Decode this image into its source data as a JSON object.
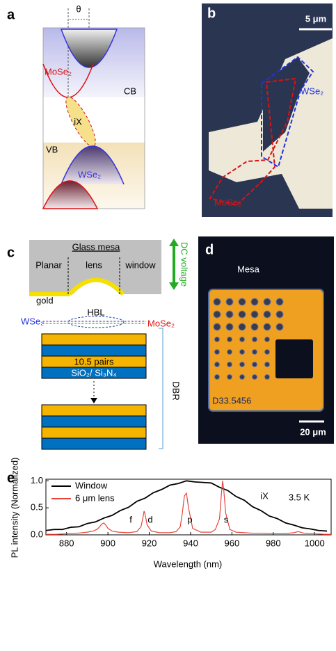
{
  "panels": {
    "a": {
      "label": "a",
      "theta": "θ",
      "mose2": "MoSe₂",
      "cb": "CB",
      "ix": "iX",
      "vb": "VB",
      "wse2": "WSe₂"
    },
    "b": {
      "label": "b",
      "scale_bar": "5 μm",
      "wse2": "WSe₂",
      "mose2": "MoSe₂"
    },
    "c": {
      "label": "c",
      "glass_mesa": "Glass mesa",
      "planar": "Planar",
      "lens": "lens",
      "window": "window",
      "gold": "gold",
      "dc_voltage": "DC voltage",
      "hbl": "HBL",
      "wse2": "WSe₂",
      "mose2": "MoSe₂",
      "pairs": "10.5 pairs",
      "materials": "SiO₂/ Si₃N₄",
      "dbr": "DBR"
    },
    "d": {
      "label": "d",
      "title": "Mesa",
      "sample_id": "D33.5456",
      "scale_bar": "20 μm"
    }
  },
  "chart_data": {
    "type": "line",
    "panel_label": "e",
    "x_label": "Wavelength (nm)",
    "y_label": "PL intensity (Normalized)",
    "annotations": [
      "iX",
      "3.5 K",
      "f",
      "d",
      "p",
      "s"
    ],
    "xlim": [
      870,
      1008
    ],
    "ylim": [
      0,
      1.03
    ],
    "xticks": [
      880,
      900,
      920,
      940,
      960,
      980,
      1000
    ],
    "yticks": [
      {
        "value": 0,
        "label": "0.0"
      },
      {
        "value": 0.5,
        "label": "0.5"
      },
      {
        "value": 1,
        "label": "1.0"
      }
    ],
    "legend": "upper left",
    "series": [
      {
        "name": "Window",
        "color": "#000000",
        "x": [
          870,
          874,
          878,
          882,
          886,
          890,
          894,
          898,
          902,
          906,
          910,
          914,
          918,
          922,
          926,
          930,
          934,
          938,
          942,
          946,
          950,
          954,
          958,
          962,
          966,
          970,
          974,
          978,
          982,
          986,
          990,
          994,
          998,
          1002,
          1006
        ],
        "values": [
          0.08,
          0.1,
          0.1,
          0.14,
          0.15,
          0.21,
          0.24,
          0.31,
          0.36,
          0.45,
          0.51,
          0.62,
          0.68,
          0.78,
          0.84,
          0.92,
          0.95,
          1.0,
          0.98,
          0.97,
          0.96,
          0.88,
          0.82,
          0.71,
          0.64,
          0.52,
          0.45,
          0.35,
          0.3,
          0.22,
          0.18,
          0.13,
          0.11,
          0.08,
          0.07
        ]
      },
      {
        "name": "6 μm lens",
        "color": "#e8443a",
        "x": [
          870,
          875,
          880,
          885,
          890,
          893,
          895,
          896,
          897,
          898,
          899,
          900,
          902,
          905,
          910,
          914,
          916,
          917,
          917.5,
          918,
          919,
          921,
          925,
          930,
          933,
          935,
          936,
          937,
          938,
          939,
          941,
          945,
          950,
          952,
          954,
          955,
          955.5,
          956,
          957,
          959,
          962,
          966,
          970,
          975,
          980,
          985,
          990,
          992,
          995,
          1000,
          1005,
          1008
        ],
        "values": [
          0.01,
          0.01,
          0.02,
          0.03,
          0.05,
          0.07,
          0.11,
          0.15,
          0.2,
          0.22,
          0.18,
          0.12,
          0.07,
          0.05,
          0.04,
          0.06,
          0.15,
          0.33,
          0.44,
          0.38,
          0.18,
          0.07,
          0.04,
          0.04,
          0.06,
          0.15,
          0.4,
          0.72,
          0.77,
          0.5,
          0.12,
          0.05,
          0.05,
          0.1,
          0.3,
          0.8,
          1.0,
          0.85,
          0.4,
          0.1,
          0.05,
          0.04,
          0.03,
          0.03,
          0.02,
          0.02,
          0.04,
          0.06,
          0.03,
          0.02,
          0.01,
          0.01
        ]
      }
    ]
  }
}
